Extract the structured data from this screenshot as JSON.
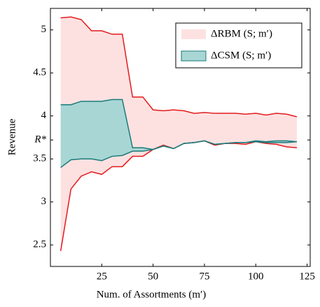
{
  "chart_data": {
    "type": "band",
    "xlabel": "Num. of Assortments (m′)",
    "ylabel": "Revenue",
    "x": [
      5,
      10,
      15,
      20,
      25,
      30,
      35,
      40,
      45,
      50,
      55,
      60,
      65,
      70,
      75,
      80,
      85,
      90,
      95,
      100,
      105,
      110,
      115,
      120
    ],
    "xlim": [
      0,
      126.5
    ],
    "xticks": [
      25,
      50,
      75,
      100,
      125
    ],
    "ylim": [
      2.25,
      5.25
    ],
    "yticks": [
      2.5,
      3.0,
      3.5,
      {
        "value": 3.72,
        "label": "R*"
      },
      4.0,
      4.5,
      5.0
    ],
    "legend": "upper-right",
    "series": [
      {
        "name": "ΔRBM (S; m′)",
        "color": "#e41a1c",
        "fill": "#fde1e1",
        "upper": [
          5.14,
          5.15,
          5.12,
          4.99,
          4.99,
          4.95,
          4.95,
          4.22,
          4.22,
          4.07,
          4.06,
          4.07,
          4.06,
          4.03,
          4.04,
          4.03,
          4.03,
          4.03,
          4.02,
          4.03,
          4.01,
          4.03,
          4.02,
          3.99
        ],
        "lower": [
          2.43,
          3.15,
          3.3,
          3.35,
          3.32,
          3.41,
          3.41,
          3.53,
          3.53,
          3.61,
          3.66,
          3.62,
          3.68,
          3.69,
          3.71,
          3.66,
          3.68,
          3.68,
          3.67,
          3.7,
          3.68,
          3.67,
          3.64,
          3.63
        ]
      },
      {
        "name": "ΔCSM (S; m′)",
        "color": "#1b7b7b",
        "fill": "#a8d6d4",
        "upper": [
          4.13,
          4.13,
          4.17,
          4.17,
          4.17,
          4.19,
          4.19,
          3.63,
          3.63,
          3.61,
          3.65,
          3.62,
          3.68,
          3.69,
          3.71,
          3.67,
          3.68,
          3.69,
          3.69,
          3.71,
          3.7,
          3.71,
          3.71,
          3.7
        ],
        "lower": [
          3.4,
          3.49,
          3.5,
          3.5,
          3.48,
          3.53,
          3.54,
          3.59,
          3.59,
          3.61,
          3.65,
          3.62,
          3.68,
          3.69,
          3.71,
          3.67,
          3.68,
          3.69,
          3.69,
          3.7,
          3.69,
          3.69,
          3.69,
          3.7
        ]
      }
    ]
  }
}
